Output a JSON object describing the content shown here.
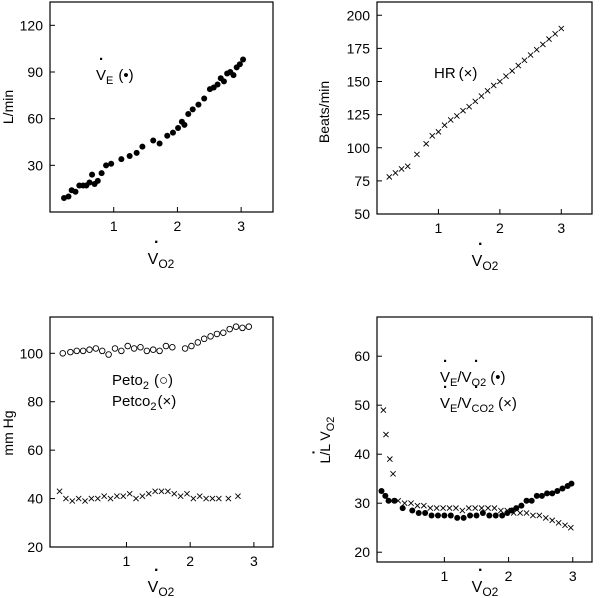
{
  "chart_data": [
    {
      "id": "ve",
      "type": "scatter",
      "ylabel": "L/min",
      "xlabel": {
        "dot": "·",
        "main": "V",
        "sub": "O",
        "sub2": "2"
      },
      "xlim": [
        0,
        3.5
      ],
      "ylim": [
        0,
        135
      ],
      "xticks": [
        1,
        2,
        3
      ],
      "yticks": [
        30,
        60,
        90,
        120
      ],
      "annotation": {
        "dot": "·",
        "main": "V",
        "sub": "E",
        "marker": "(•)"
      },
      "series": [
        {
          "name": "VE",
          "marker": "filled-dot",
          "x": [
            0.22,
            0.29,
            0.34,
            0.4,
            0.46,
            0.52,
            0.57,
            0.62,
            0.66,
            0.7,
            0.75,
            0.81,
            0.88,
            0.96,
            1.12,
            1.25,
            1.36,
            1.45,
            1.62,
            1.72,
            1.84,
            1.93,
            2.01,
            2.07,
            2.11,
            2.17,
            2.24,
            2.33,
            2.42,
            2.51,
            2.57,
            2.63,
            2.68,
            2.73,
            2.78,
            2.83,
            2.88,
            2.93,
            2.98,
            3.03
          ],
          "y": [
            9,
            10,
            14,
            13,
            17,
            17,
            17,
            19,
            24,
            18,
            20,
            25,
            30,
            31,
            34,
            36,
            38,
            42,
            46,
            44,
            49,
            51,
            54,
            58,
            56,
            63,
            66,
            69,
            73,
            79,
            80,
            82,
            86,
            84,
            89,
            90,
            88,
            93,
            95,
            98
          ]
        }
      ]
    },
    {
      "id": "hr",
      "type": "scatter",
      "ylabel": "Beats/min",
      "xlabel": {
        "dot": "·",
        "main": "V",
        "sub": "O",
        "sub2": "2"
      },
      "xlim": [
        0,
        3.5
      ],
      "ylim": [
        50,
        210
      ],
      "xticks": [
        1,
        2,
        3
      ],
      "yticks": [
        50,
        75,
        100,
        125,
        150,
        175,
        200
      ],
      "annotation": {
        "main": "HR",
        "marker": "(×)"
      },
      "series": [
        {
          "name": "HR",
          "marker": "x",
          "x": [
            0.2,
            0.3,
            0.4,
            0.5,
            0.65,
            0.8,
            0.9,
            1.0,
            1.1,
            1.2,
            1.3,
            1.4,
            1.5,
            1.6,
            1.7,
            1.8,
            1.9,
            2.0,
            2.1,
            2.2,
            2.3,
            2.4,
            2.5,
            2.6,
            2.7,
            2.8,
            2.9,
            3.0
          ],
          "y": [
            78,
            81,
            84,
            86,
            95,
            103,
            109,
            112,
            117,
            121,
            124,
            128,
            131,
            135,
            139,
            143,
            147,
            150,
            154,
            158,
            162,
            166,
            170,
            174,
            178,
            182,
            186,
            190
          ]
        }
      ]
    },
    {
      "id": "peto",
      "type": "scatter",
      "ylabel": "mm Hg",
      "xlabel": {
        "dot": "·",
        "main": "V",
        "sub": "O",
        "sub2": "2"
      },
      "xlim": [
        -0.2,
        3.3
      ],
      "ylim": [
        20,
        115
      ],
      "xticks": [
        1,
        2,
        3
      ],
      "yticks": [
        20,
        40,
        60,
        80,
        100
      ],
      "annotations": [
        {
          "main": "Peto",
          "sub": "2",
          "marker": "(○)"
        },
        {
          "main": "Petco",
          "sub": "2",
          "marker": "(×)"
        }
      ],
      "series": [
        {
          "name": "Peto2",
          "marker": "open-circle",
          "x": [
            0.0,
            0.12,
            0.22,
            0.32,
            0.42,
            0.52,
            0.62,
            0.72,
            0.82,
            0.92,
            1.02,
            1.12,
            1.22,
            1.32,
            1.42,
            1.52,
            1.62,
            1.72,
            1.92,
            2.02,
            2.12,
            2.22,
            2.32,
            2.42,
            2.52,
            2.62,
            2.72,
            2.82,
            2.92
          ],
          "y": [
            100,
            100.5,
            101,
            101,
            101.5,
            102,
            101,
            99.5,
            102,
            101,
            103,
            102,
            102.5,
            101,
            101.5,
            101,
            103,
            102.5,
            102,
            103,
            104.5,
            106,
            107,
            108,
            108.5,
            110,
            111,
            110.5,
            111
          ]
        },
        {
          "name": "Petco2",
          "marker": "x",
          "x": [
            -0.05,
            0.05,
            0.15,
            0.25,
            0.35,
            0.45,
            0.55,
            0.65,
            0.75,
            0.85,
            0.95,
            1.05,
            1.15,
            1.25,
            1.35,
            1.45,
            1.55,
            1.65,
            1.75,
            1.85,
            1.95,
            2.05,
            2.15,
            2.25,
            2.35,
            2.45,
            2.6,
            2.75
          ],
          "y": [
            43,
            40,
            39,
            40,
            39,
            40,
            40,
            41,
            40,
            41,
            41,
            42,
            40,
            41,
            42,
            43,
            43,
            43,
            42,
            41,
            42,
            40,
            41,
            40,
            40,
            40,
            40,
            41
          ]
        }
      ]
    },
    {
      "id": "vent-eq",
      "type": "scatter",
      "ylabel": {
        "main": "L/L ",
        "dot": "·",
        "v": "V",
        "sub": "O",
        "sub2": "2"
      },
      "xlabel": {
        "dot": "·",
        "main": "V",
        "sub": "O",
        "sub2": "2"
      },
      "xlim": [
        -0.05,
        3.3
      ],
      "ylim": [
        18,
        68
      ],
      "xticks": [
        1,
        2,
        3
      ],
      "yticks": [
        20,
        30,
        40,
        50,
        60
      ],
      "annotations": [
        {
          "dot": "·",
          "a": "V",
          "asub": "E",
          "slash": "/",
          "b": "V",
          "bsub": "O",
          "bsub2": "2",
          "marker": "(•)"
        },
        {
          "dot": "·",
          "a": "V",
          "asub": "E",
          "slash": "/",
          "b": "V",
          "bsub": "CO",
          "bsub2": "2",
          "marker": "(×)"
        }
      ],
      "series": [
        {
          "name": "VE/VO2",
          "marker": "filled-dot",
          "x": [
            0.02,
            0.08,
            0.13,
            0.22,
            0.35,
            0.5,
            0.6,
            0.7,
            0.8,
            0.9,
            1.0,
            1.1,
            1.2,
            1.3,
            1.4,
            1.5,
            1.6,
            1.7,
            1.8,
            1.9,
            1.98,
            2.05,
            2.12,
            2.2,
            2.28,
            2.36,
            2.44,
            2.52,
            2.6,
            2.68,
            2.76,
            2.84,
            2.92,
            2.98
          ],
          "y": [
            32.5,
            31.5,
            30.5,
            30.5,
            29,
            28.5,
            28,
            28,
            27.5,
            27.5,
            27.5,
            27.5,
            27,
            27,
            27.5,
            27.5,
            28,
            27.5,
            27.5,
            27.5,
            28,
            28.5,
            29,
            29.5,
            30.5,
            30.5,
            31.5,
            31.5,
            32,
            32,
            32.5,
            33,
            33.5,
            34
          ]
        },
        {
          "name": "VE/VCO2",
          "marker": "x",
          "x": [
            0.05,
            0.09,
            0.15,
            0.2,
            0.28,
            0.38,
            0.48,
            0.58,
            0.68,
            0.78,
            0.88,
            0.98,
            1.08,
            1.18,
            1.28,
            1.38,
            1.48,
            1.58,
            1.68,
            1.78,
            1.88,
            1.98,
            2.08,
            2.18,
            2.28,
            2.38,
            2.48,
            2.58,
            2.68,
            2.78,
            2.88,
            2.97
          ],
          "y": [
            49,
            44,
            39,
            36,
            30.5,
            30,
            30,
            29.5,
            29.5,
            29,
            29,
            29,
            29,
            29,
            28.5,
            29,
            29,
            29,
            29,
            29,
            28.5,
            28.5,
            28,
            28,
            28,
            27.5,
            27.5,
            27,
            26.5,
            26,
            25.5,
            25
          ]
        }
      ]
    }
  ]
}
